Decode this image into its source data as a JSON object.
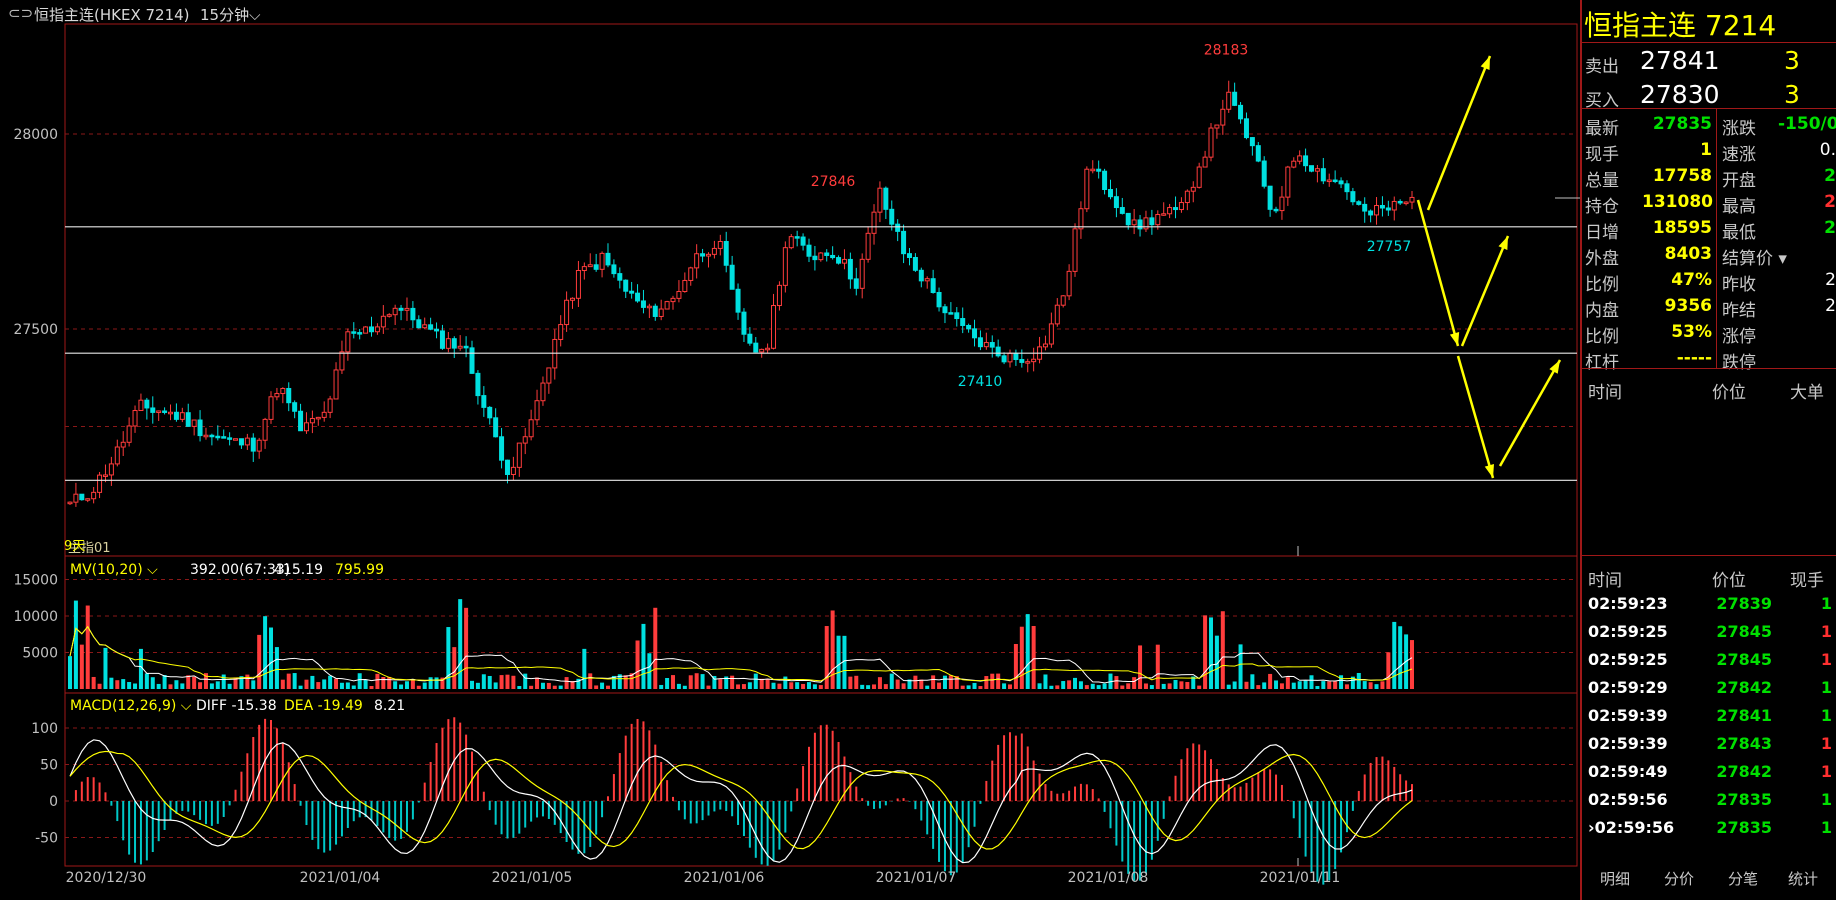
{
  "header": {
    "icon": "link-icon",
    "title": "恒指主连(HKEX 7214)",
    "period": "15分钟"
  },
  "chart_data": {
    "type": "candlestick",
    "y_ticks": [
      28000,
      27500
    ],
    "x_ticks": [
      "2020/12/30",
      "2021/01/04",
      "2021/01/05",
      "2021/01/06",
      "2021/01/07",
      "2021/01/08",
      "2021/01/11"
    ],
    "annotations": [
      {
        "label": "28183",
        "price": 28183,
        "color": "#ff3c3c"
      },
      {
        "label": "27846",
        "price": 27846,
        "color": "#ff3c3c"
      },
      {
        "label": "27410",
        "price": 27410,
        "color": "#00e0e0"
      },
      {
        "label": "27757",
        "price": 27757,
        "color": "#00e0e0"
      }
    ],
    "support_lines": [
      27762,
      27438,
      27112
    ],
    "corner_label": "9天",
    "corner_label2": "主指01",
    "close_path": [
      27050,
      27090,
      27180,
      27300,
      27290,
      27270,
      27230,
      27210,
      27205,
      27360,
      27240,
      27280,
      27480,
      27500,
      27560,
      27520,
      27470,
      27460,
      27280,
      27130,
      27270,
      27480,
      27640,
      27680,
      27600,
      27540,
      27570,
      27680,
      27730,
      27500,
      27420,
      27740,
      27690,
      27700,
      27620,
      27850,
      27700,
      27620,
      27530,
      27480,
      27440,
      27420,
      27450,
      27600,
      27920,
      27850,
      27760,
      27790,
      27800,
      27950,
      28100,
      27980,
      27790,
      27960,
      27900,
      27870,
      27790,
      27810,
      27830
    ],
    "sell_arrow": [
      [
        27800,
        27480
      ],
      [
        27480,
        27880
      ]
    ],
    "indicator_mv": {
      "label": "MV(10,20)",
      "v1": "392.00(67:33)",
      "v2": "415.19",
      "v3": "795.99",
      "ticks": [
        15000,
        10000,
        5000
      ]
    },
    "indicator_macd": {
      "label": "MACD(12,26,9)",
      "diff": "DIFF -15.38",
      "dea": "DEA -19.49",
      "macd": "8.21",
      "ticks": [
        100,
        50,
        0,
        -50
      ]
    }
  },
  "panel": {
    "title": "恒指主连  7214",
    "sell": {
      "label": "卖出",
      "price": "27841",
      "qty": "3"
    },
    "buy": {
      "label": "买入",
      "price": "27830",
      "qty": "3"
    },
    "stats_left": [
      {
        "label": "最新",
        "value": "27835",
        "color": "grn"
      },
      {
        "label": "现手",
        "value": "1",
        "color": "yel"
      },
      {
        "label": "总量",
        "value": "17758",
        "color": "yel"
      },
      {
        "label": "持仓",
        "value": "131080",
        "color": "yel"
      },
      {
        "label": "日增",
        "value": "18595",
        "color": "yel"
      },
      {
        "label": "外盘",
        "value": "8403",
        "color": "yel"
      },
      {
        "label": "比例",
        "value": "47%",
        "color": "yel"
      },
      {
        "label": "内盘",
        "value": "9356",
        "color": "yel"
      },
      {
        "label": "比例",
        "value": "53%",
        "color": "yel"
      },
      {
        "label": "杠杆",
        "value": "-----",
        "color": "yel"
      }
    ],
    "stats_right": [
      {
        "label": "涨跌",
        "value": "-150/0.",
        "color": "grn"
      },
      {
        "label": "速涨",
        "value": "0.",
        "color": "wht"
      },
      {
        "label": "开盘",
        "value": "2",
        "color": "grn"
      },
      {
        "label": "最高",
        "value": "2",
        "color": "red"
      },
      {
        "label": "最低",
        "value": "2",
        "color": "grn"
      },
      {
        "label": "结算价",
        "value": "",
        "color": "wht"
      },
      {
        "label": "昨收",
        "value": "2",
        "color": "wht"
      },
      {
        "label": "昨结",
        "value": "2",
        "color": "wht"
      },
      {
        "label": "涨停",
        "value": "",
        "color": "wht"
      },
      {
        "label": "跌停",
        "value": "",
        "color": "wht"
      }
    ],
    "detail_header": [
      "时间",
      "价位",
      "大单"
    ],
    "trades_header": [
      "时间",
      "价位",
      "现手"
    ],
    "trades": [
      {
        "time": "02:59:23",
        "price": "27839",
        "vol": "1",
        "vc": "grn"
      },
      {
        "time": "02:59:25",
        "price": "27845",
        "vol": "1",
        "vc": "red"
      },
      {
        "time": "02:59:25",
        "price": "27845",
        "vol": "1",
        "vc": "red"
      },
      {
        "time": "02:59:29",
        "price": "27842",
        "vol": "1",
        "vc": "grn"
      },
      {
        "time": "02:59:39",
        "price": "27841",
        "vol": "1",
        "vc": "grn"
      },
      {
        "time": "02:59:39",
        "price": "27843",
        "vol": "1",
        "vc": "red"
      },
      {
        "time": "02:59:49",
        "price": "27842",
        "vol": "1",
        "vc": "red"
      },
      {
        "time": "02:59:56",
        "price": "27835",
        "vol": "1",
        "vc": "grn"
      },
      {
        "time": "02:59:56",
        "price": "27835",
        "vol": "1",
        "vc": "grn"
      }
    ],
    "tabs": [
      "明细",
      "分价",
      "分笔",
      "统计"
    ]
  }
}
